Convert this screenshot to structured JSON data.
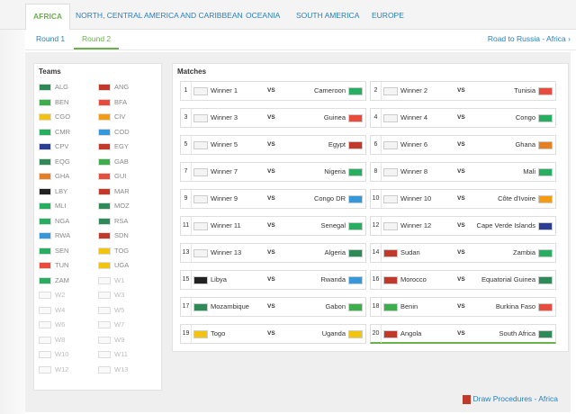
{
  "tabs": [
    "AFRICA",
    "NORTH, CENTRAL AMERICA AND CARIBBEAN",
    "OCEANIA",
    "SOUTH AMERICA",
    "EUROPE"
  ],
  "rounds": [
    "Round 1",
    "Round 2"
  ],
  "road_link": "Road to Russia - Africa",
  "teams_title": "Teams",
  "matches_title": "Matches",
  "teams": [
    {
      "name": "ALG",
      "flag": "#2e8b57"
    },
    {
      "name": "ANG",
      "flag": "#c0392b"
    },
    {
      "name": "BEN",
      "flag": "#3cae4c"
    },
    {
      "name": "BFA",
      "flag": "#e74c3c"
    },
    {
      "name": "CGO",
      "flag": "#f1c40f"
    },
    {
      "name": "CIV",
      "flag": "#f39c12"
    },
    {
      "name": "CMR",
      "flag": "#27ae60"
    },
    {
      "name": "COD",
      "flag": "#3498db"
    },
    {
      "name": "CPV",
      "flag": "#2c3e91"
    },
    {
      "name": "EGY",
      "flag": "#c0392b"
    },
    {
      "name": "EQG",
      "flag": "#2e8b57"
    },
    {
      "name": "GAB",
      "flag": "#3cae4c"
    },
    {
      "name": "GHA",
      "flag": "#e67e22"
    },
    {
      "name": "GUI",
      "flag": "#e74c3c"
    },
    {
      "name": "LBY",
      "flag": "#222222"
    },
    {
      "name": "MAR",
      "flag": "#c0392b"
    },
    {
      "name": "MLI",
      "flag": "#27ae60"
    },
    {
      "name": "MOZ",
      "flag": "#2e8b57"
    },
    {
      "name": "NGA",
      "flag": "#27ae60"
    },
    {
      "name": "RSA",
      "flag": "#2e8b57"
    },
    {
      "name": "RWA",
      "flag": "#3498db"
    },
    {
      "name": "SDN",
      "flag": "#c0392b"
    },
    {
      "name": "SEN",
      "flag": "#27ae60"
    },
    {
      "name": "TOG",
      "flag": "#f1c40f"
    },
    {
      "name": "TUN",
      "flag": "#e74c3c"
    },
    {
      "name": "UGA",
      "flag": "#f1c40f"
    },
    {
      "name": "ZAM",
      "flag": "#27ae60"
    },
    {
      "name": "W1",
      "flag": ""
    },
    {
      "name": "W2",
      "flag": ""
    },
    {
      "name": "W3",
      "flag": ""
    },
    {
      "name": "W4",
      "flag": ""
    },
    {
      "name": "W5",
      "flag": ""
    },
    {
      "name": "W6",
      "flag": ""
    },
    {
      "name": "W7",
      "flag": ""
    },
    {
      "name": "W8",
      "flag": ""
    },
    {
      "name": "W9",
      "flag": ""
    },
    {
      "name": "W10",
      "flag": ""
    },
    {
      "name": "W11",
      "flag": ""
    },
    {
      "name": "W12",
      "flag": ""
    },
    {
      "name": "W13",
      "flag": ""
    }
  ],
  "matches": [
    {
      "num": "1",
      "home": "Winner 1",
      "vs": "VS",
      "away": "Cameroon",
      "hf": "",
      "af": "#27ae60"
    },
    {
      "num": "2",
      "home": "Winner 2",
      "vs": "VS",
      "away": "Tunisia",
      "hf": "",
      "af": "#e74c3c"
    },
    {
      "num": "3",
      "home": "Winner 3",
      "vs": "VS",
      "away": "Guinea",
      "hf": "",
      "af": "#e74c3c"
    },
    {
      "num": "4",
      "home": "Winner 4",
      "vs": "VS",
      "away": "Congo",
      "hf": "",
      "af": "#27ae60"
    },
    {
      "num": "5",
      "home": "Winner 5",
      "vs": "VS",
      "away": "Egypt",
      "hf": "",
      "af": "#c0392b"
    },
    {
      "num": "6",
      "home": "Winner 6",
      "vs": "VS",
      "away": "Ghana",
      "hf": "",
      "af": "#e67e22"
    },
    {
      "num": "7",
      "home": "Winner 7",
      "vs": "VS",
      "away": "Nigeria",
      "hf": "",
      "af": "#27ae60"
    },
    {
      "num": "8",
      "home": "Winner 8",
      "vs": "VS",
      "away": "Mali",
      "hf": "",
      "af": "#27ae60"
    },
    {
      "num": "9",
      "home": "Winner 9",
      "vs": "VS",
      "away": "Congo DR",
      "hf": "",
      "af": "#3498db"
    },
    {
      "num": "10",
      "home": "Winner 10",
      "vs": "VS",
      "away": "Côte d'Ivoire",
      "hf": "",
      "af": "#f39c12"
    },
    {
      "num": "11",
      "home": "Winner 11",
      "vs": "VS",
      "away": "Senegal",
      "hf": "",
      "af": "#27ae60"
    },
    {
      "num": "12",
      "home": "Winner 12",
      "vs": "VS",
      "away": "Cape Verde Islands",
      "hf": "",
      "af": "#2c3e91"
    },
    {
      "num": "13",
      "home": "Winner 13",
      "vs": "VS",
      "away": "Algeria",
      "hf": "",
      "af": "#2e8b57"
    },
    {
      "num": "14",
      "home": "Sudan",
      "vs": "VS",
      "away": "Zambia",
      "hf": "#c0392b",
      "af": "#27ae60"
    },
    {
      "num": "15",
      "home": "Libya",
      "vs": "VS",
      "away": "Rwanda",
      "hf": "#222222",
      "af": "#3498db"
    },
    {
      "num": "16",
      "home": "Morocco",
      "vs": "VS",
      "away": "Equatorial Guinea",
      "hf": "#c0392b",
      "af": "#2e8b57"
    },
    {
      "num": "17",
      "home": "Mozambique",
      "vs": "VS",
      "away": "Gabon",
      "hf": "#2e8b57",
      "af": "#3cae4c"
    },
    {
      "num": "18",
      "home": "Benin",
      "vs": "VS",
      "away": "Burkina Faso",
      "hf": "#3cae4c",
      "af": "#e74c3c"
    },
    {
      "num": "19",
      "home": "Togo",
      "vs": "VS",
      "away": "Uganda",
      "hf": "#f1c40f",
      "af": "#f1c40f"
    },
    {
      "num": "20",
      "home": "Angola",
      "vs": "VS",
      "away": "South Africa",
      "hf": "#c0392b",
      "af": "#2e8b57"
    }
  ],
  "draw_link": "Draw Procedures - Africa"
}
